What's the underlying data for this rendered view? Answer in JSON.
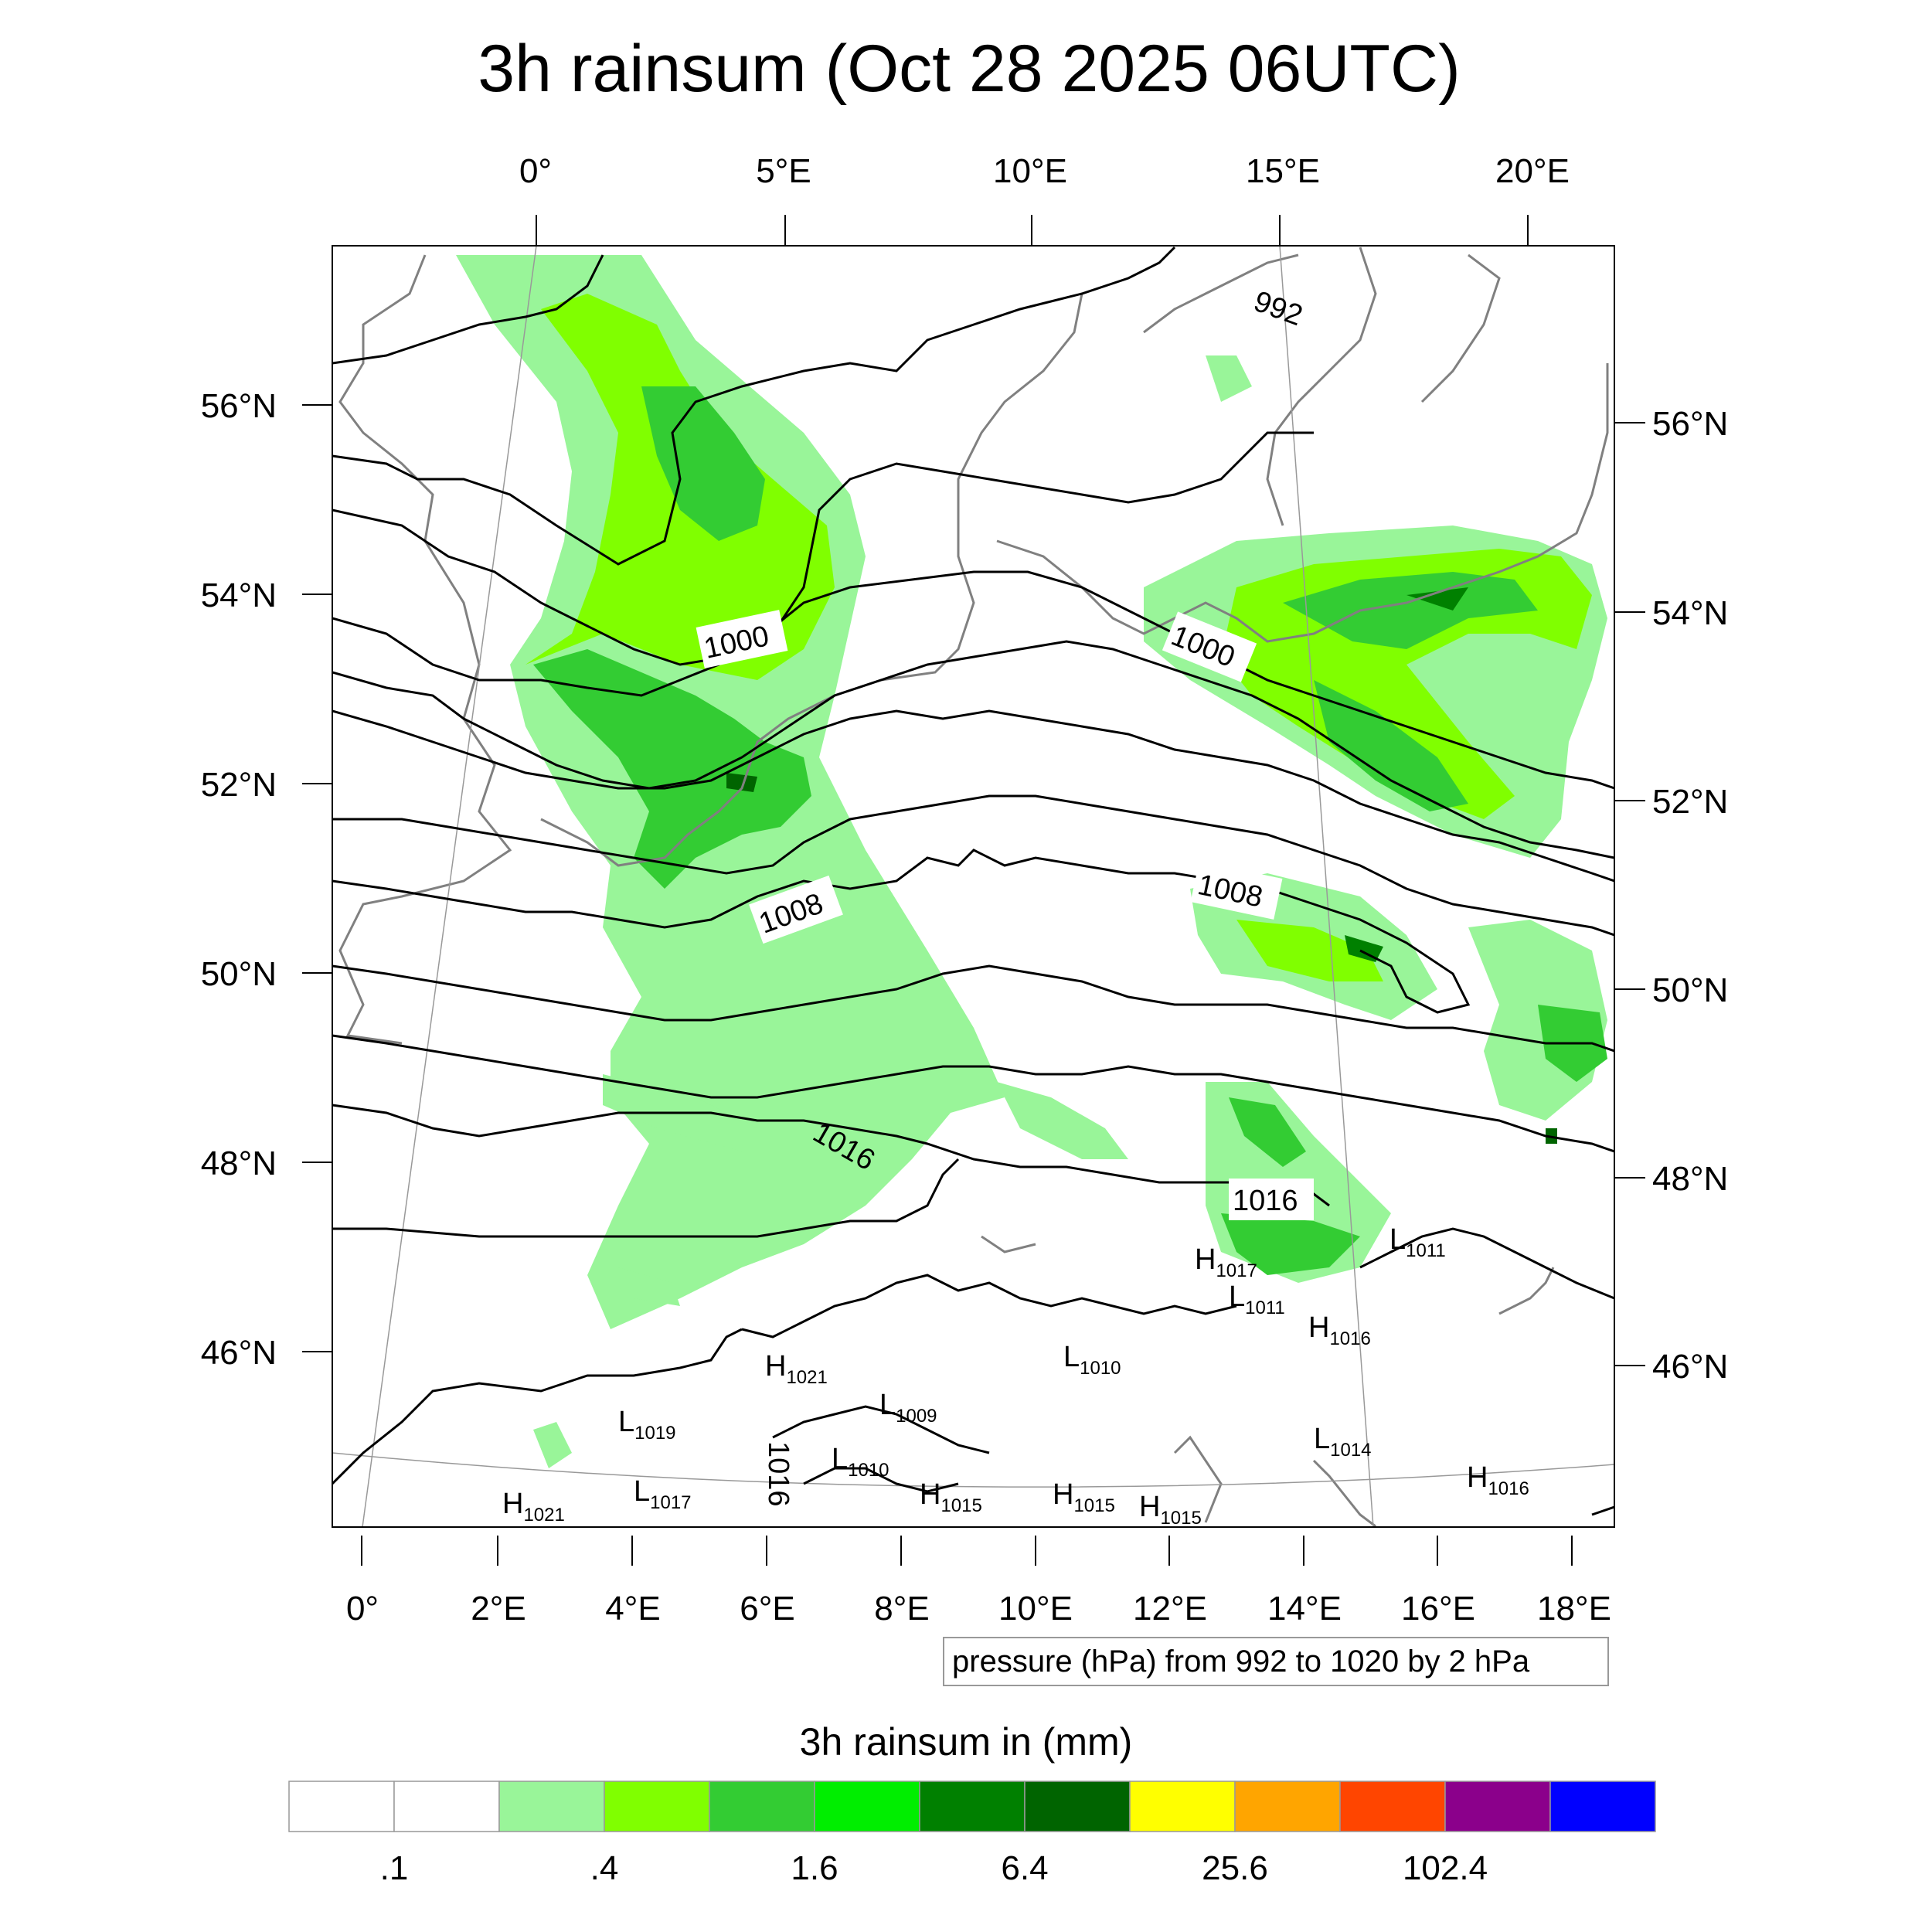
{
  "title": "3h rainsum (Oct 28 2025 06UTC)",
  "map": {
    "top_lon_labels": [
      "0°",
      "5°E",
      "10°E",
      "15°E",
      "20°E"
    ],
    "bottom_lon_labels": [
      "0°",
      "2°E",
      "4°E",
      "6°E",
      "8°E",
      "10°E",
      "12°E",
      "14°E",
      "16°E",
      "18°E"
    ],
    "left_lat_labels": [
      "56°N",
      "54°N",
      "52°N",
      "50°N",
      "48°N",
      "46°N"
    ],
    "right_lat_labels": [
      "56°N",
      "54°N",
      "52°N",
      "50°N",
      "48°N",
      "46°N"
    ],
    "isobar_labels": [
      "992",
      "1000",
      "1000",
      "1008",
      "1008",
      "1016",
      "1016",
      "1016"
    ],
    "pressure_centers": [
      {
        "type": "L",
        "value": "1011"
      },
      {
        "type": "H",
        "value": "1017"
      },
      {
        "type": "L",
        "value": "1011"
      },
      {
        "type": "H",
        "value": "1016"
      },
      {
        "type": "H",
        "value": "1021"
      },
      {
        "type": "L",
        "value": "1010"
      },
      {
        "type": "L",
        "value": "1009"
      },
      {
        "type": "L",
        "value": "1019"
      },
      {
        "type": "L",
        "value": "1010"
      },
      {
        "type": "L",
        "value": "1014"
      },
      {
        "type": "H",
        "value": "1016"
      },
      {
        "type": "H",
        "value": "1021"
      },
      {
        "type": "L",
        "value": "1017"
      },
      {
        "type": "H",
        "value": "1015"
      },
      {
        "type": "H",
        "value": "1015"
      },
      {
        "type": "H",
        "value": "1015"
      }
    ]
  },
  "contour_note": "pressure (hPa) from 992 to 1020 by 2 hPa",
  "colorbar": {
    "title": "3h rainsum in (mm)",
    "colors": [
      "#ffffff",
      "#ffffff",
      "#99f599",
      "#80ff00",
      "#33cc33",
      "#00ee00",
      "#008000",
      "#006400",
      "#ffff00",
      "#ffa500",
      "#ff4500",
      "#8b008b",
      "#0000ff"
    ],
    "labels": [
      ".1",
      ".4",
      "1.6",
      "6.4",
      "25.6",
      "102.4"
    ]
  },
  "colors": {
    "rain_light": "#99f599",
    "rain_green": "#80ff00",
    "rain_mid": "#33cc33",
    "rain_bright": "#00ee00",
    "rain_dark": "#008000",
    "rain_darkest": "#006400",
    "coast": "#808080",
    "isobar": "#000000"
  }
}
